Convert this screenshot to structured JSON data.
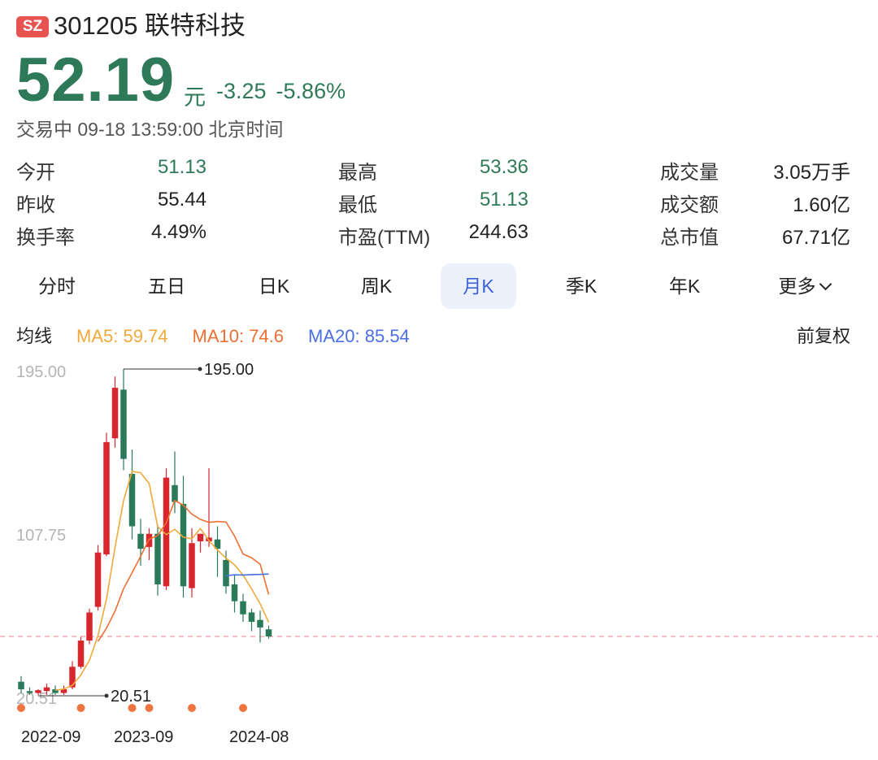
{
  "header": {
    "market_badge": "SZ",
    "title": "301205 联特科技",
    "price": "52.19",
    "unit": "元",
    "change": "-3.25",
    "change_pct": "-5.86%",
    "status": "交易中 09-18 13:59:00 北京时间"
  },
  "stats": [
    {
      "label": "今开",
      "value": "51.13",
      "color": "green"
    },
    {
      "label": "最高",
      "value": "53.36",
      "color": "green"
    },
    {
      "label": "成交量",
      "value": "3.05万手",
      "color": "dark"
    },
    {
      "label": "昨收",
      "value": "55.44",
      "color": "dark"
    },
    {
      "label": "最低",
      "value": "51.13",
      "color": "green"
    },
    {
      "label": "成交额",
      "value": "1.60亿",
      "color": "dark"
    },
    {
      "label": "换手率",
      "value": "4.49%",
      "color": "dark"
    },
    {
      "label": "市盈(TTM)",
      "value": "244.63",
      "color": "dark"
    },
    {
      "label": "总市值",
      "value": "67.71亿",
      "color": "dark"
    }
  ],
  "tabs": [
    {
      "label": "分时"
    },
    {
      "label": "五日"
    },
    {
      "label": "日K"
    },
    {
      "label": "周K"
    },
    {
      "label": "月K",
      "active": true
    },
    {
      "label": "季K"
    },
    {
      "label": "年K"
    },
    {
      "label": "更多"
    }
  ],
  "ma": {
    "title": "均线",
    "ma5": "MA5: 59.74",
    "ma10": "MA10: 74.6",
    "ma20": "MA20: 85.54",
    "adjust": "前复权"
  },
  "colors": {
    "up": "#d8262f",
    "down": "#2a7a5a",
    "ma5": "#f0a93b",
    "ma10": "#ee7033",
    "ma20": "#4a6fe5",
    "dashed": "#f2a8b0",
    "dots": "#ee7440",
    "active_tab_bg": "#ecf0fa",
    "active_tab_text": "#3b61d6"
  },
  "chart_data": {
    "type": "candlestick",
    "y_ticks": [
      "195.00",
      "107.75",
      "20.51"
    ],
    "ylim": [
      20.51,
      195.0
    ],
    "x_ticks": [
      "2022-09",
      "2023-09",
      "2024-08"
    ],
    "max_label": "195.00",
    "min_label": "20.51",
    "last_close": 52.19,
    "candles": [
      {
        "o": 28,
        "h": 31,
        "l": 22,
        "c": 24
      },
      {
        "o": 23,
        "h": 25,
        "l": 21,
        "c": 22
      },
      {
        "o": 22,
        "h": 24,
        "l": 20.8,
        "c": 23.5
      },
      {
        "o": 23,
        "h": 27,
        "l": 21,
        "c": 25
      },
      {
        "o": 24,
        "h": 26,
        "l": 21,
        "c": 22
      },
      {
        "o": 22,
        "h": 26,
        "l": 21,
        "c": 24
      },
      {
        "o": 25,
        "h": 39,
        "l": 24,
        "c": 36
      },
      {
        "o": 36,
        "h": 52,
        "l": 35,
        "c": 50
      },
      {
        "o": 50,
        "h": 67,
        "l": 48,
        "c": 65
      },
      {
        "o": 68,
        "h": 101,
        "l": 66,
        "c": 97
      },
      {
        "o": 96,
        "h": 161,
        "l": 95,
        "c": 156
      },
      {
        "o": 158,
        "h": 191,
        "l": 153,
        "c": 185
      },
      {
        "o": 184,
        "h": 195,
        "l": 141,
        "c": 147
      },
      {
        "o": 139,
        "h": 152,
        "l": 104,
        "c": 111
      },
      {
        "o": 107,
        "h": 115,
        "l": 90,
        "c": 99
      },
      {
        "o": 100,
        "h": 110,
        "l": 93,
        "c": 107
      },
      {
        "o": 107,
        "h": 112,
        "l": 74,
        "c": 80
      },
      {
        "o": 79,
        "h": 142,
        "l": 77,
        "c": 137
      },
      {
        "o": 133,
        "h": 151,
        "l": 118,
        "c": 124
      },
      {
        "o": 123,
        "h": 138,
        "l": 73,
        "c": 79
      },
      {
        "o": 78,
        "h": 110,
        "l": 73,
        "c": 102
      },
      {
        "o": 103,
        "h": 107,
        "l": 97,
        "c": 107
      },
      {
        "o": 103,
        "h": 142,
        "l": 100,
        "c": 105
      },
      {
        "o": 104,
        "h": 111,
        "l": 84,
        "c": 99
      },
      {
        "o": 93,
        "h": 98,
        "l": 75,
        "c": 79
      },
      {
        "o": 80,
        "h": 85,
        "l": 65,
        "c": 71
      },
      {
        "o": 71,
        "h": 75,
        "l": 60,
        "c": 64
      },
      {
        "o": 65,
        "h": 67,
        "l": 55,
        "c": 60
      },
      {
        "o": 61,
        "h": 66,
        "l": 49,
        "c": 57
      },
      {
        "o": 56,
        "h": 58,
        "l": 51,
        "c": 52.19
      }
    ],
    "ma5": [
      null,
      null,
      null,
      null,
      23.5,
      24.1,
      26.1,
      31.6,
      39.5,
      52.6,
      72.2,
      99.8,
      124.8,
      140.4,
      139.6,
      133.8,
      110.8,
      106.6,
      109.4,
      105.2,
      104.4,
      109.8,
      103.4,
      98.4,
      94.0,
      90.4,
      85.0,
      77.6,
      69.6,
      59.74
    ],
    "ma10": [
      null,
      null,
      null,
      null,
      null,
      null,
      null,
      null,
      null,
      49.5,
      56.6,
      65.7,
      77.7,
      86.2,
      95.0,
      104.1,
      106.1,
      112.9,
      124.8,
      122.3,
      117.5,
      114.7,
      113.1,
      113.6,
      113.3,
      105.8,
      96.2,
      94.2,
      90.8,
      74.6
    ],
    "ma20": [
      null,
      null,
      null,
      null,
      null,
      null,
      null,
      null,
      null,
      null,
      null,
      null,
      null,
      null,
      null,
      null,
      null,
      null,
      null,
      null,
      null,
      null,
      null,
      null,
      84.7,
      85.1,
      85.0,
      85.2,
      85.3,
      85.54
    ],
    "marker_candle_indices": [
      0,
      7,
      13,
      15,
      20,
      26
    ]
  }
}
